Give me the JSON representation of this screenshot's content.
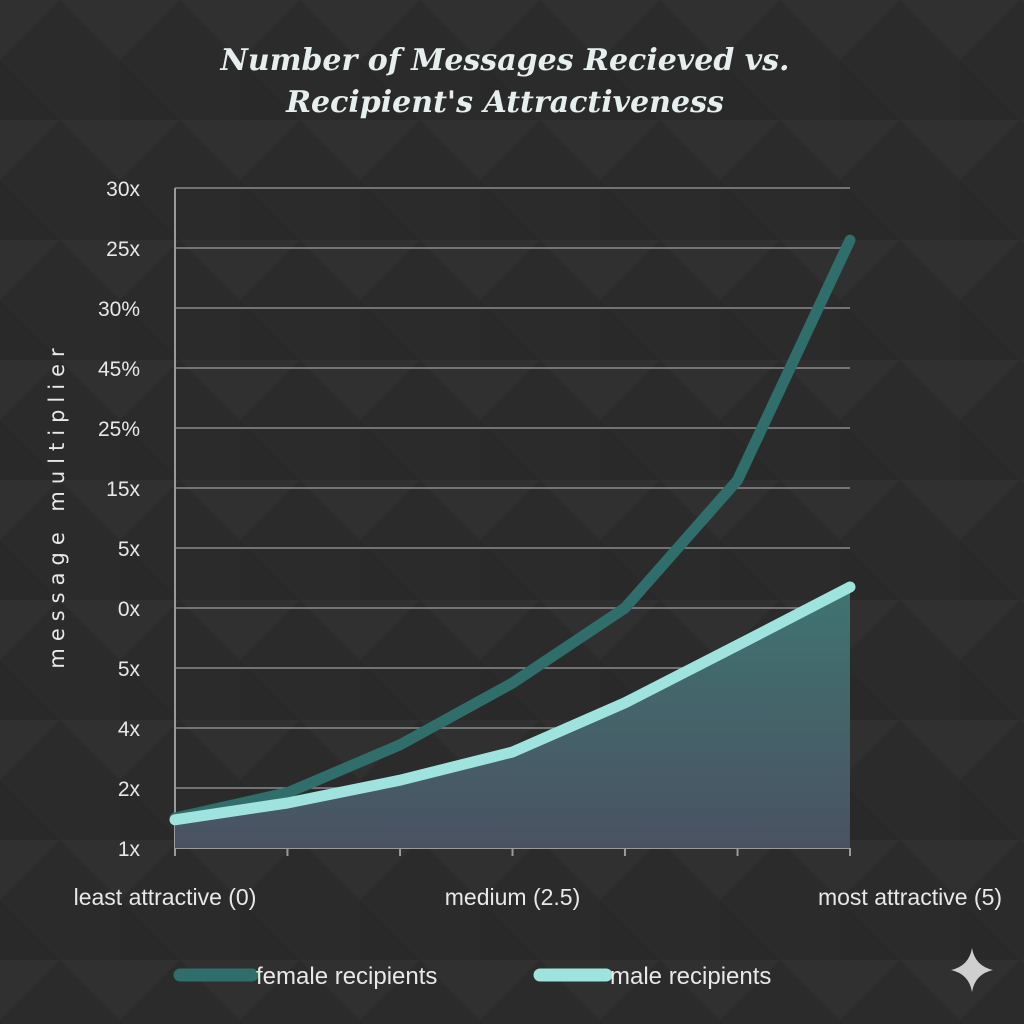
{
  "chart_data": {
    "type": "line",
    "title_lines": [
      "Number of Messages Recieved  vs.",
      "Recipient's Attractiveness"
    ],
    "ylabel": "message multiplier",
    "xlabel": "",
    "y_tick_labels_bottom_to_top": [
      "1x",
      "2x",
      "4x",
      "5x",
      "0x",
      "5x",
      "15x",
      "25%",
      "45%",
      "30%",
      "25x",
      "30x"
    ],
    "y_units_note": "values given in tick-position units (0 = bottom tick '1x', 11 = top tick '30x')",
    "ylim": [
      0,
      11
    ],
    "xlim": [
      0,
      5
    ],
    "x_tick_positions": [
      0,
      0.833,
      1.667,
      2.5,
      3.333,
      4.167,
      5
    ],
    "x_tick_labels": [
      {
        "x": 0,
        "label": "least attractive (0)"
      },
      {
        "x": 2.5,
        "label": "medium (2.5)"
      },
      {
        "x": 5,
        "label": "most attractive (5)"
      }
    ],
    "x": [
      0,
      0.833,
      1.667,
      2.5,
      3.333,
      4.167,
      5
    ],
    "series": [
      {
        "name": "female recipients",
        "color": "#2f6e6b",
        "values": [
          0.5,
          0.92,
          1.72,
          2.75,
          4.0,
          6.13,
          10.13
        ]
      },
      {
        "name": "male recipients",
        "color": "#9fe3de",
        "area_fill": true,
        "values": [
          0.47,
          0.75,
          1.13,
          1.6,
          2.42,
          3.38,
          4.35
        ]
      }
    ],
    "grid": true,
    "legend": "bottom-center"
  },
  "colors": {
    "background": "#2b2b2b",
    "grid": "#8a8a8a",
    "text": "#e8e8e8"
  }
}
